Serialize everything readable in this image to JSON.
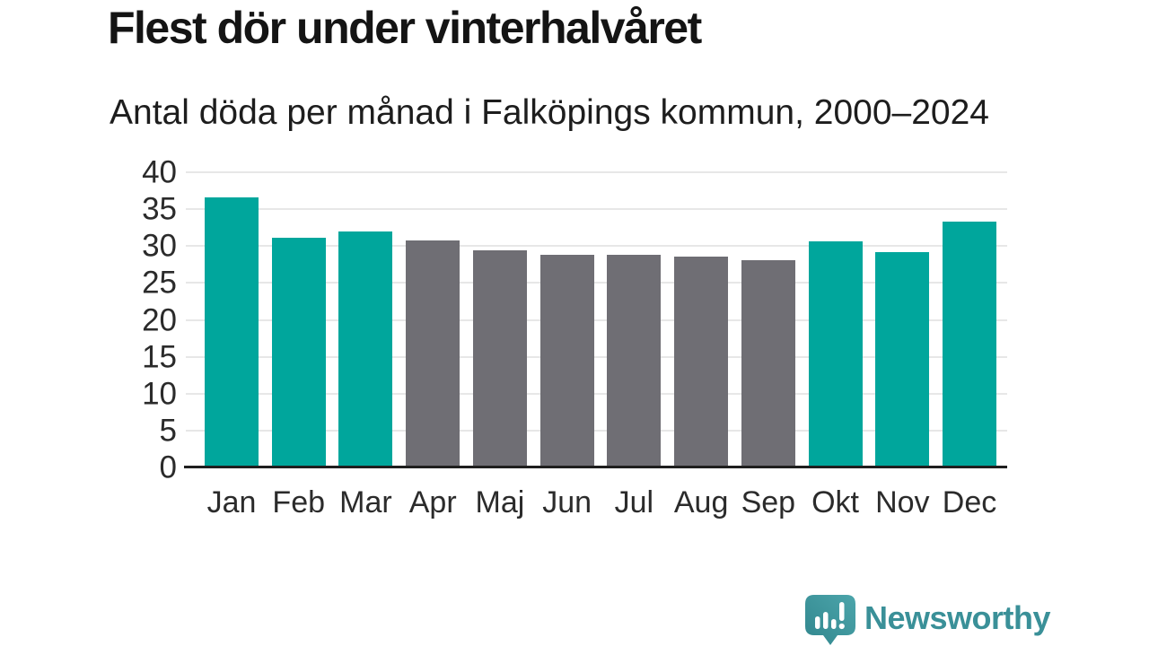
{
  "title": "Flest dör under vinterhalvåret",
  "subtitle": "Antal döda per månad i Falköpings kommun, 2000–2024",
  "chart_data": {
    "type": "bar",
    "title": "Flest dör under vinterhalvåret",
    "subtitle": "Antal döda per månad i Falköpings kommun, 2000–2024",
    "xlabel": "",
    "ylabel": "",
    "categories": [
      "Jan",
      "Feb",
      "Mar",
      "Apr",
      "Maj",
      "Jun",
      "Jul",
      "Aug",
      "Sep",
      "Okt",
      "Nov",
      "Dec"
    ],
    "values": [
      36.6,
      31.1,
      32.0,
      30.8,
      29.4,
      28.8,
      28.8,
      28.6,
      28.1,
      30.7,
      29.2,
      33.3
    ],
    "bar_colors": [
      "#00a69c",
      "#00a69c",
      "#00a69c",
      "#6f6e74",
      "#6f6e74",
      "#6f6e74",
      "#6f6e74",
      "#6f6e74",
      "#6f6e74",
      "#00a69c",
      "#00a69c",
      "#00a69c"
    ],
    "ylim": [
      0,
      40
    ],
    "yticks": [
      0,
      5,
      10,
      15,
      20,
      25,
      30,
      35,
      40
    ],
    "grid": true,
    "legend": "none",
    "highlight_color": "#00a69c",
    "muted_color": "#6f6e74"
  },
  "branding": {
    "logo_text": "Newsworthy",
    "logo_text_color": "#3a9098",
    "logo_bubble_color_top": "#4ca5ab",
    "logo_bubble_color_bottom": "#31868d",
    "logo_icon": "newsworthy-speech-bubble-barchart-icon"
  },
  "colors": {
    "background": "#ffffff",
    "gridline": "#e7e7e7",
    "axis_line": "#1f1f1f",
    "title_text": "#141414",
    "tick_text": "#2b2b2b"
  }
}
